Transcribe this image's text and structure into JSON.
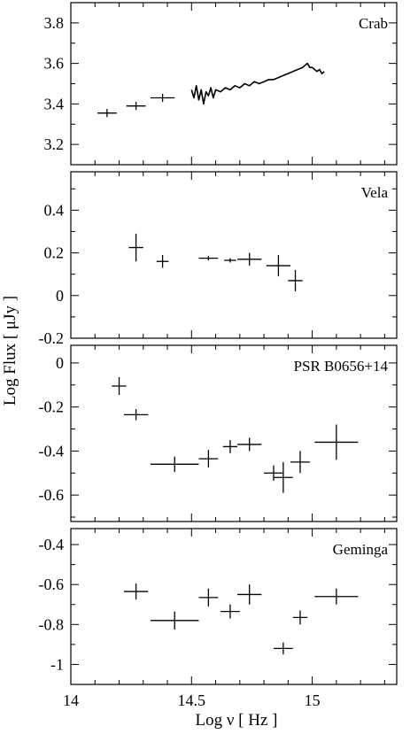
{
  "chart_data": [
    {
      "type": "scatter",
      "title": "Crab",
      "ylim": [
        3.1,
        3.9
      ],
      "yticks": [
        3.2,
        3.4,
        3.6,
        3.8
      ],
      "ytick_labels": [
        "3.2",
        "3.4",
        "3.6",
        "3.8"
      ],
      "points": [
        {
          "x": 14.15,
          "y": 3.355,
          "xerr": 0.04,
          "yerr": 0.02
        },
        {
          "x": 14.27,
          "y": 3.39,
          "xerr": 0.04,
          "yerr": 0.02
        },
        {
          "x": 14.38,
          "y": 3.43,
          "xerr": 0.05,
          "yerr": 0.02
        }
      ],
      "spectrum": {
        "x": [
          14.5,
          14.51,
          14.52,
          14.53,
          14.54,
          14.55,
          14.56,
          14.57,
          14.58,
          14.59,
          14.6,
          14.62,
          14.64,
          14.66,
          14.68,
          14.7,
          14.72,
          14.74,
          14.76,
          14.78,
          14.8,
          14.82,
          14.84,
          14.86,
          14.88,
          14.9,
          14.92,
          14.94,
          14.96,
          14.97,
          14.98,
          14.99,
          15.0,
          15.01,
          15.02,
          15.03,
          15.04,
          15.05
        ],
        "y": [
          3.47,
          3.43,
          3.49,
          3.42,
          3.47,
          3.4,
          3.46,
          3.44,
          3.48,
          3.43,
          3.47,
          3.46,
          3.48,
          3.47,
          3.49,
          3.48,
          3.5,
          3.49,
          3.51,
          3.5,
          3.51,
          3.52,
          3.52,
          3.53,
          3.54,
          3.55,
          3.56,
          3.57,
          3.58,
          3.59,
          3.6,
          3.58,
          3.58,
          3.57,
          3.56,
          3.57,
          3.55,
          3.56
        ]
      }
    },
    {
      "type": "scatter",
      "title": "Vela",
      "ylim": [
        -0.2,
        0.58
      ],
      "yticks": [
        -0.2,
        0,
        0.2,
        0.4
      ],
      "ytick_labels": [
        "-0.2",
        "0",
        "0.2",
        "0.4"
      ],
      "points": [
        {
          "x": 14.27,
          "y": 0.225,
          "xerr": 0.03,
          "yerr": 0.065
        },
        {
          "x": 14.38,
          "y": 0.16,
          "xerr": 0.025,
          "yerr": 0.03
        },
        {
          "x": 14.57,
          "y": 0.175,
          "xerr": 0.04,
          "yerr": 0.01
        },
        {
          "x": 14.66,
          "y": 0.165,
          "xerr": 0.025,
          "yerr": 0.01
        },
        {
          "x": 14.74,
          "y": 0.17,
          "xerr": 0.05,
          "yerr": 0.03
        },
        {
          "x": 14.86,
          "y": 0.14,
          "xerr": 0.05,
          "yerr": 0.05
        },
        {
          "x": 14.93,
          "y": 0.07,
          "xerr": 0.03,
          "yerr": 0.05
        }
      ]
    },
    {
      "type": "scatter",
      "title": "PSR B0656+14",
      "ylim": [
        -0.72,
        0.08
      ],
      "yticks": [
        -0.6,
        -0.4,
        -0.2,
        0
      ],
      "ytick_labels": [
        "-0.6",
        "-0.4",
        "-0.2",
        "0"
      ],
      "points": [
        {
          "x": 14.2,
          "y": -0.105,
          "xerr": 0.03,
          "yerr": 0.04
        },
        {
          "x": 14.27,
          "y": -0.235,
          "xerr": 0.05,
          "yerr": 0.025
        },
        {
          "x": 14.43,
          "y": -0.46,
          "xerr": 0.1,
          "yerr": 0.035
        },
        {
          "x": 14.57,
          "y": -0.435,
          "xerr": 0.04,
          "yerr": 0.04
        },
        {
          "x": 14.66,
          "y": -0.38,
          "xerr": 0.03,
          "yerr": 0.03
        },
        {
          "x": 14.74,
          "y": -0.37,
          "xerr": 0.05,
          "yerr": 0.03
        },
        {
          "x": 14.84,
          "y": -0.5,
          "xerr": 0.04,
          "yerr": 0.035
        },
        {
          "x": 14.88,
          "y": -0.52,
          "xerr": 0.04,
          "yerr": 0.07
        },
        {
          "x": 14.95,
          "y": -0.45,
          "xerr": 0.04,
          "yerr": 0.05
        },
        {
          "x": 15.1,
          "y": -0.36,
          "xerr": 0.09,
          "yerr": 0.08
        }
      ]
    },
    {
      "type": "scatter",
      "title": "Geminga",
      "ylim": [
        -1.1,
        -0.32
      ],
      "yticks": [
        -1,
        -0.8,
        -0.6,
        -0.4
      ],
      "ytick_labels": [
        "-1",
        "-0.8",
        "-0.6",
        "-0.4"
      ],
      "points": [
        {
          "x": 14.27,
          "y": -0.635,
          "xerr": 0.05,
          "yerr": 0.04
        },
        {
          "x": 14.43,
          "y": -0.78,
          "xerr": 0.1,
          "yerr": 0.045
        },
        {
          "x": 14.57,
          "y": -0.665,
          "xerr": 0.04,
          "yerr": 0.045
        },
        {
          "x": 14.66,
          "y": -0.735,
          "xerr": 0.04,
          "yerr": 0.035
        },
        {
          "x": 14.74,
          "y": -0.65,
          "xerr": 0.05,
          "yerr": 0.05
        },
        {
          "x": 14.88,
          "y": -0.92,
          "xerr": 0.04,
          "yerr": 0.03
        },
        {
          "x": 14.95,
          "y": -0.765,
          "xerr": 0.03,
          "yerr": 0.035
        },
        {
          "x": 15.1,
          "y": -0.66,
          "xerr": 0.09,
          "yerr": 0.04
        }
      ]
    }
  ],
  "x_axis": {
    "xlim": [
      14.0,
      15.35
    ],
    "ticks": [
      14,
      14.5,
      15
    ],
    "tick_labels": [
      "14",
      "14.5",
      "15"
    ],
    "label": "Log ν  [ Hz ]"
  },
  "y_axis": {
    "label": "Log Flux  [ μJy ]"
  },
  "style": {
    "ink": "#000000",
    "background": "#ffffff"
  }
}
